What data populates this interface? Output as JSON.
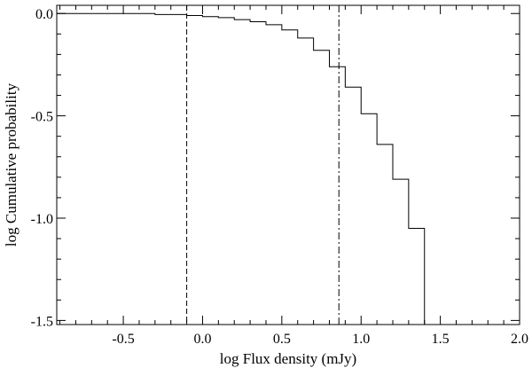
{
  "chart_data": {
    "type": "line",
    "title": "",
    "xlabel": "log Flux density (mJy)",
    "ylabel": "log Cumulative probability",
    "xlim": [
      -0.92,
      2.0
    ],
    "ylim": [
      -1.52,
      0.04
    ],
    "x_ticks": [
      -0.5,
      0.0,
      0.5,
      1.0,
      1.5,
      2.0
    ],
    "x_tick_labels": [
      "-0.5",
      "0.0",
      "0.5",
      "1.0",
      "1.5",
      "2.0"
    ],
    "y_ticks": [
      0.0,
      -0.5,
      -1.0,
      -1.5
    ],
    "y_tick_labels": [
      "0.0",
      "-0.5",
      "-1.0",
      "-1.5"
    ],
    "x_minor_step": 0.1,
    "y_minor_step": 0.1,
    "grid": false,
    "legend": "none",
    "series": [
      {
        "style": "step",
        "x": [
          -0.92,
          -0.3,
          -0.1,
          0.0,
          0.1,
          0.2,
          0.3,
          0.4,
          0.5,
          0.6,
          0.7,
          0.8,
          0.9,
          1.0,
          1.1,
          1.2,
          1.3,
          1.4
        ],
        "y": [
          0.0,
          -0.005,
          -0.01,
          -0.015,
          -0.02,
          -0.03,
          -0.04,
          -0.055,
          -0.08,
          -0.12,
          -0.18,
          -0.26,
          -0.36,
          -0.49,
          -0.64,
          -0.81,
          -1.05,
          -1.52
        ]
      }
    ],
    "vlines": [
      {
        "x": -0.1,
        "style": "dashed"
      },
      {
        "x": 0.86,
        "style": "dash-dot"
      }
    ]
  }
}
